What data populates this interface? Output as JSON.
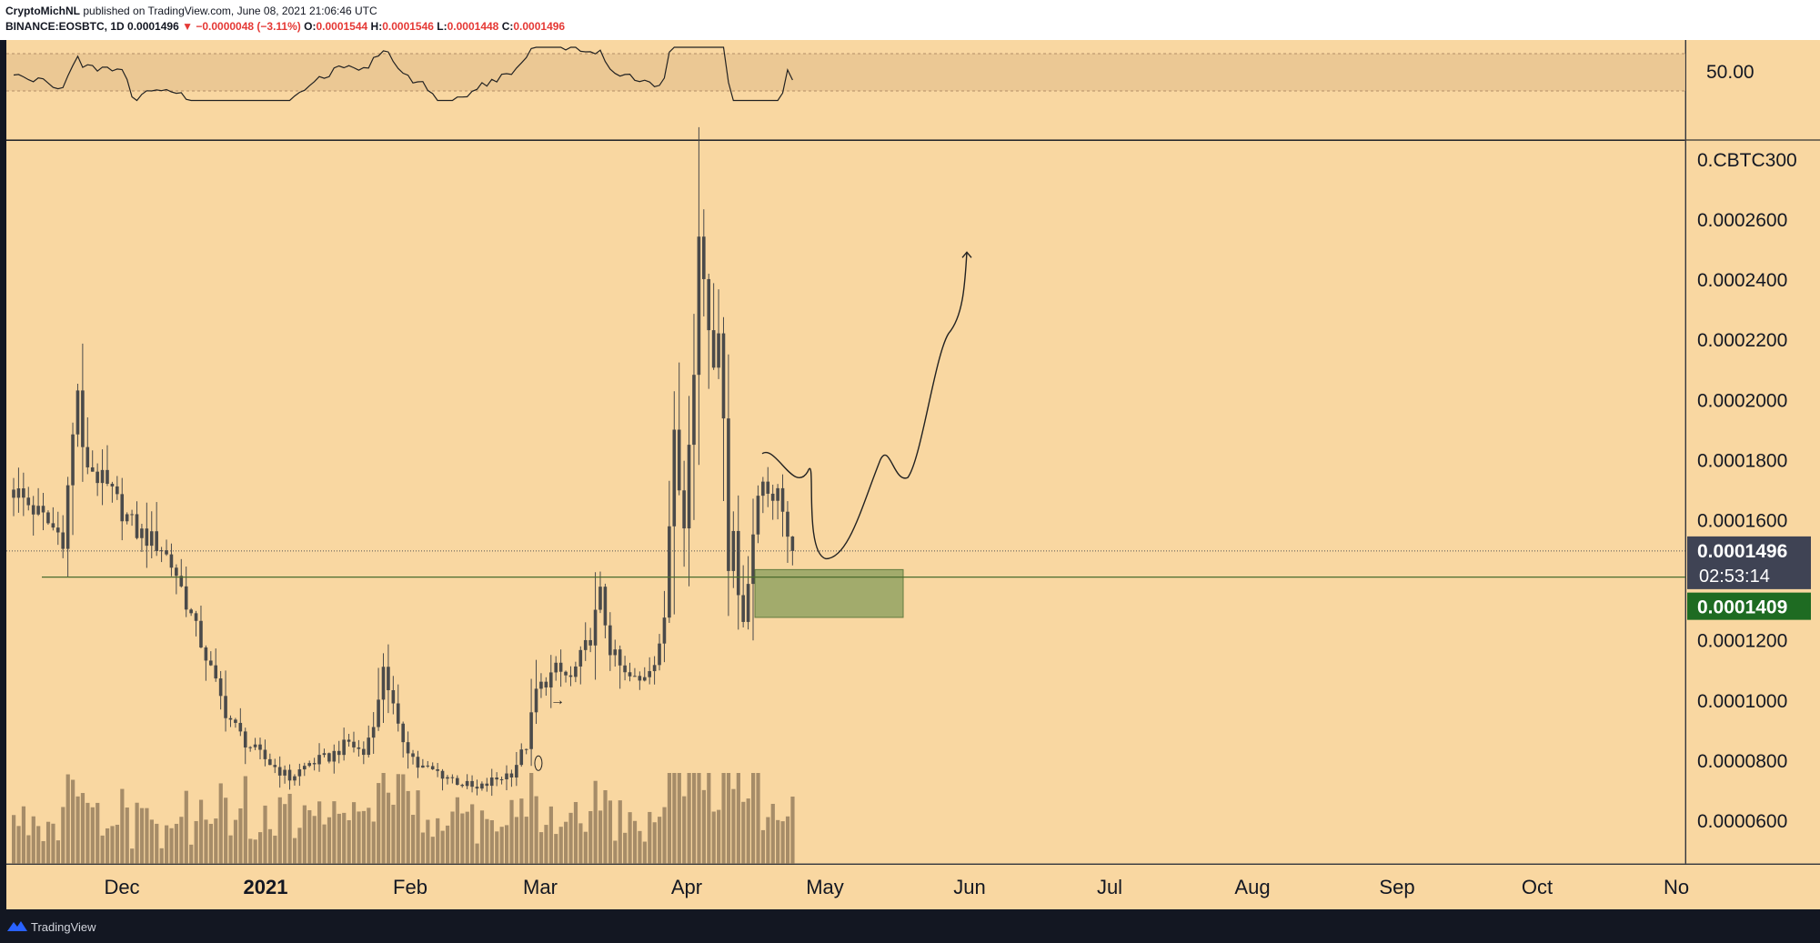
{
  "header": {
    "author": "CryptoMichNL",
    "published": "published on TradingView.com, June 08, 2021 21:06:46 UTC",
    "symbol": "BINANCE:EOSBTC, 1D",
    "last": "0.0001496",
    "change": "−0.0000048 (−3.11%)",
    "o_label": "O:",
    "o": "0.0001544",
    "h_label": "H:",
    "h": "0.0001546",
    "l_label": "L:",
    "l": "0.0001448",
    "c_label": "C:",
    "c": "0.0001496"
  },
  "footer": {
    "brand": "TradingView"
  },
  "chart_data": {
    "type": "candlestick",
    "colors": {
      "background": "#f9d7a1",
      "candle": "#4a4a4a",
      "line": "#222222",
      "box": "#94a463",
      "hline": "#4a6b2e",
      "price_bg": "#3f4354",
      "level_bg": "#1e6b22"
    },
    "x_ticks": [
      "Dec",
      "2021",
      "Feb",
      "Mar",
      "Apr",
      "May",
      "Jun",
      "Jul",
      "Aug",
      "Sep",
      "Oct",
      "No"
    ],
    "y_ticks": [
      "0.0002600",
      "0.0002400",
      "0.0002200",
      "0.0002000",
      "0.0001800",
      "0.0001600",
      "0.0001200",
      "0.0001000",
      "0.0000800",
      "0.0000600"
    ],
    "y_unit": "0.CBTC300",
    "ylim": [
      4.55e-05,
      0.000286
    ],
    "rsi_label": "50.00",
    "last_price": {
      "value": 0.0001496,
      "label": "0.0001496",
      "countdown": "02:53:14"
    },
    "level": {
      "value": 0.0001409,
      "label": "0.0001409"
    },
    "support_box": {
      "top": 0.0001434,
      "bottom": 0.0001275
    },
    "projection_target": 0.000249,
    "annotation_arrow": "→",
    "candles": [],
    "volume": [],
    "rsi": []
  }
}
